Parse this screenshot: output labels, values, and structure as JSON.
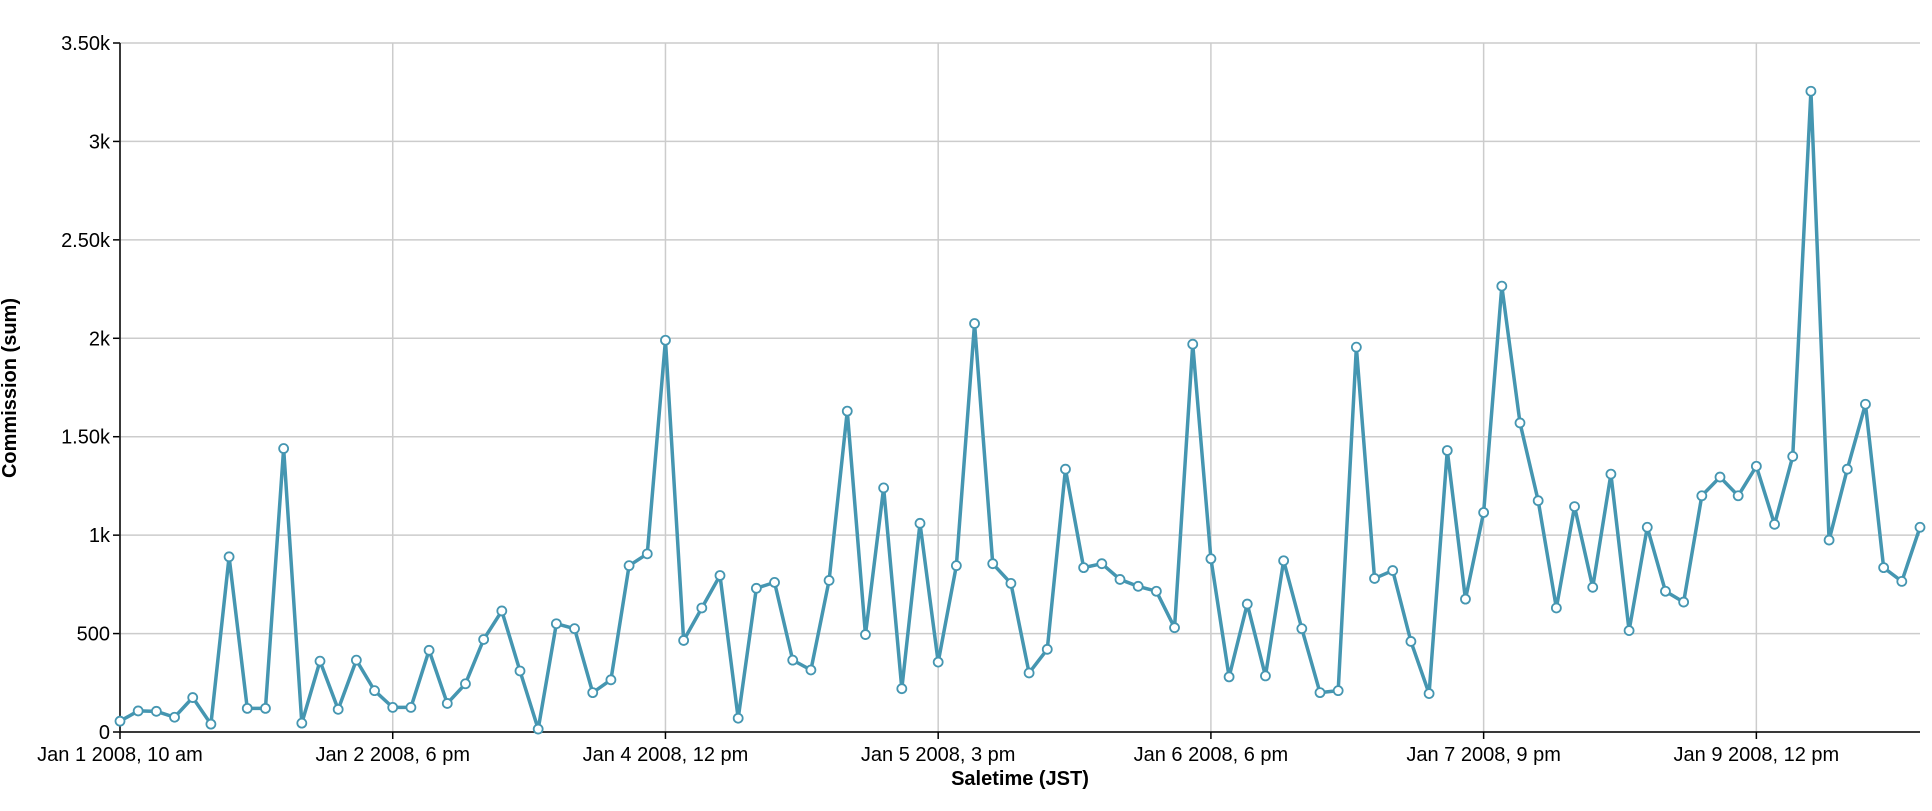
{
  "chart_data": {
    "type": "line",
    "x_label": "Saletime (JST)",
    "y_label": "Commission (sum)",
    "categories": [
      "Jan 1 2008, 10 am",
      null,
      null,
      null,
      null,
      null,
      null,
      null,
      null,
      null,
      null,
      null,
      null,
      null,
      null,
      "Jan 2 2008, 6 pm",
      null,
      null,
      null,
      null,
      null,
      null,
      null,
      null,
      null,
      null,
      null,
      null,
      null,
      null,
      "Jan 4 2008, 12 pm",
      null,
      null,
      null,
      null,
      null,
      null,
      null,
      null,
      null,
      null,
      null,
      null,
      null,
      null,
      "Jan 5 2008, 3 pm",
      null,
      null,
      null,
      null,
      null,
      null,
      null,
      null,
      null,
      null,
      null,
      null,
      null,
      null,
      "Jan 6 2008, 6 pm",
      null,
      null,
      null,
      null,
      null,
      null,
      null,
      null,
      null,
      null,
      null,
      null,
      null,
      null,
      "Jan 7 2008, 9 pm",
      null,
      null,
      null,
      null,
      null,
      null,
      null,
      null,
      null,
      null,
      null,
      null,
      null,
      null,
      "Jan 9 2008, 12 pm",
      null,
      null,
      null,
      null,
      null,
      null,
      null,
      null,
      null
    ],
    "series": [
      {
        "name": "Commission (sum)",
        "color": "#4596b1",
        "values": [
          55,
          107,
          105,
          75,
          175,
          40,
          890,
          120,
          120,
          1440,
          45,
          360,
          115,
          365,
          210,
          125,
          125,
          415,
          145,
          245,
          470,
          615,
          310,
          15,
          550,
          525,
          200,
          265,
          845,
          905,
          1990,
          465,
          630,
          795,
          70,
          730,
          760,
          365,
          315,
          770,
          1630,
          495,
          1240,
          220,
          1060,
          355,
          845,
          2075,
          855,
          755,
          300,
          420,
          1335,
          835,
          855,
          775,
          740,
          715,
          530,
          1970,
          880,
          280,
          650,
          285,
          870,
          525,
          200,
          210,
          1955,
          780,
          820,
          460,
          195,
          1430,
          675,
          1115,
          2265,
          1570,
          1175,
          630,
          1145,
          735,
          1310,
          515,
          1040,
          715,
          660,
          1200,
          1295,
          1200,
          1350,
          1055,
          1400,
          3255,
          975,
          1335,
          1665,
          835,
          765,
          1040
        ]
      }
    ],
    "ylim": [
      0,
      3500
    ],
    "yticks": [
      0,
      500,
      {
        "value": 1000,
        "label": "1k"
      },
      {
        "value": 1500,
        "label": "1.50k"
      },
      {
        "value": 2000,
        "label": "2k"
      },
      {
        "value": 2500,
        "label": "2.50k"
      },
      {
        "value": 3000,
        "label": "3k"
      },
      {
        "value": 3500,
        "label": "3.50k"
      }
    ],
    "grid": true
  }
}
